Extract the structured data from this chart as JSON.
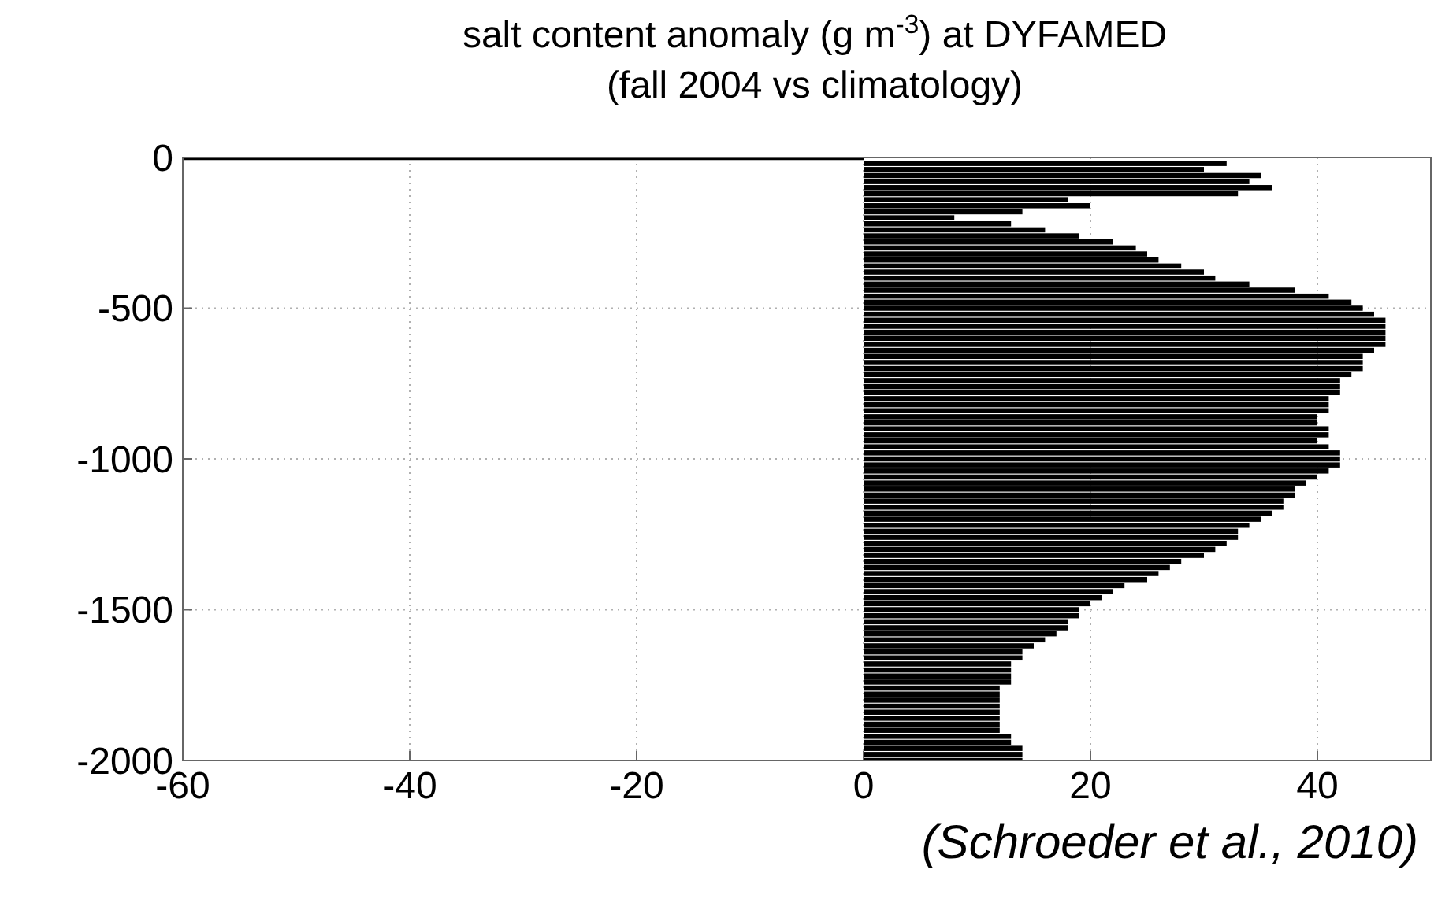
{
  "chart_data": {
    "type": "bar",
    "orientation": "horizontal",
    "title": "salt content anomaly (g m$^{-3}$) at DYFAMED",
    "subtitle": "(fall 2004 vs climatology)",
    "annotations": [
      "(Schroeder et al., 2010)"
    ],
    "x": [
      0,
      -20,
      -40,
      -60,
      -80,
      -100,
      -120,
      -140,
      -160,
      -180,
      -200,
      -220,
      -240,
      -260,
      -280,
      -300,
      -320,
      -340,
      -360,
      -380,
      -400,
      -420,
      -440,
      -460,
      -480,
      -500,
      -520,
      -540,
      -560,
      -580,
      -600,
      -620,
      -640,
      -660,
      -680,
      -700,
      -720,
      -740,
      -760,
      -780,
      -800,
      -820,
      -840,
      -860,
      -880,
      -900,
      -920,
      -940,
      -960,
      -980,
      -1000,
      -1020,
      -1040,
      -1060,
      -1080,
      -1100,
      -1120,
      -1140,
      -1160,
      -1180,
      -1200,
      -1220,
      -1240,
      -1260,
      -1280,
      -1300,
      -1320,
      -1340,
      -1360,
      -1380,
      -1400,
      -1420,
      -1440,
      -1460,
      -1480,
      -1500,
      -1520,
      -1540,
      -1560,
      -1580,
      -1600,
      -1620,
      -1640,
      -1660,
      -1680,
      -1700,
      -1720,
      -1740,
      -1760,
      -1780,
      -1800,
      -1820,
      -1840,
      -1860,
      -1880,
      -1900,
      -1920,
      -1940,
      -1960,
      -1980,
      -2000
    ],
    "values": [
      -60,
      32,
      30,
      35,
      34,
      36,
      33,
      18,
      20,
      14,
      8,
      13,
      16,
      19,
      22,
      24,
      25,
      26,
      28,
      30,
      31,
      34,
      38,
      41,
      43,
      44,
      45,
      46,
      46,
      46,
      46,
      46,
      45,
      44,
      44,
      44,
      43,
      42,
      42,
      42,
      41,
      41,
      41,
      40,
      40,
      41,
      41,
      40,
      41,
      42,
      42,
      42,
      41,
      40,
      39,
      38,
      38,
      37,
      37,
      36,
      35,
      34,
      33,
      33,
      32,
      31,
      30,
      28,
      27,
      26,
      25,
      23,
      22,
      21,
      20,
      19,
      19,
      18,
      18,
      17,
      16,
      15,
      14,
      14,
      13,
      13,
      13,
      13,
      12,
      12,
      12,
      12,
      12,
      12,
      12,
      12,
      13,
      13,
      14,
      14,
      14
    ],
    "color": "#000000",
    "xlim": [
      -60,
      50
    ],
    "xticks": [
      -60,
      -40,
      -20,
      0,
      20,
      40
    ],
    "ylim": [
      -2000,
      0
    ],
    "yticks": [
      0,
      -500,
      -1000,
      -1500,
      -2000
    ],
    "grid": true
  }
}
